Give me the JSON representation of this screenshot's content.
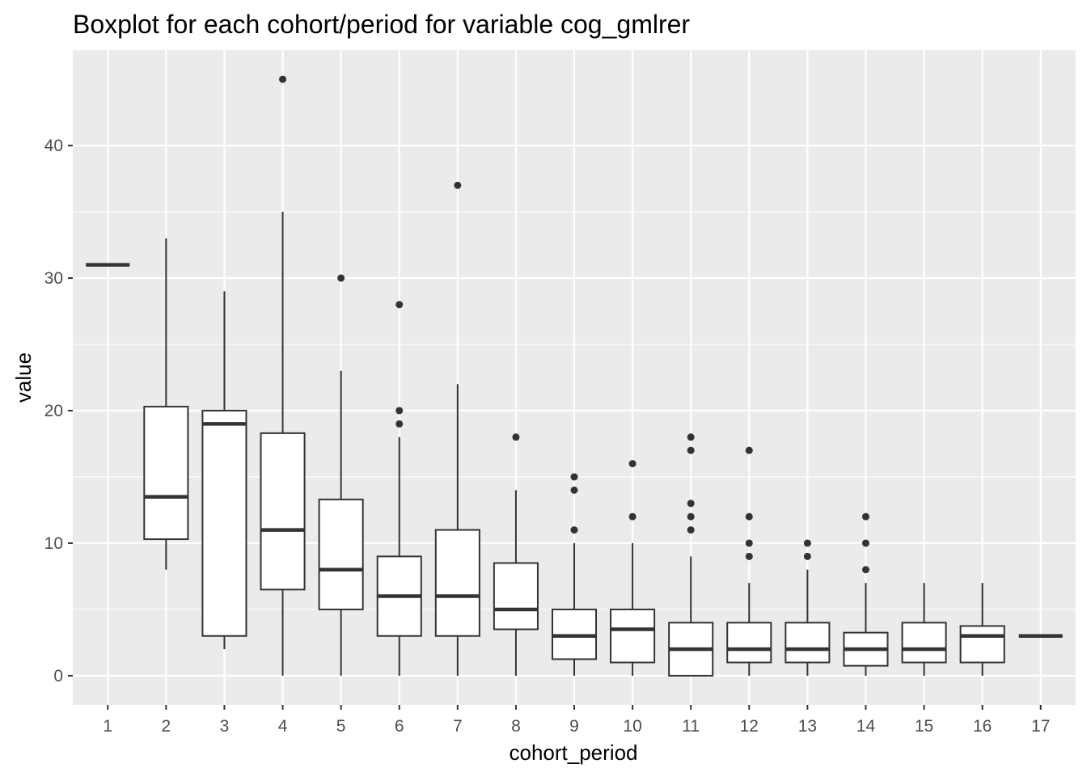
{
  "chart_data": {
    "type": "boxplot",
    "title": "Boxplot for each cohort/period for variable cog_gmlrer",
    "xlabel": "cohort_period",
    "ylabel": "value",
    "ylim": [
      -2.2,
      47.2
    ],
    "yticks": [
      0,
      10,
      20,
      30,
      40
    ],
    "grid": true,
    "categories": [
      "1",
      "2",
      "3",
      "4",
      "5",
      "6",
      "7",
      "8",
      "9",
      "10",
      "11",
      "12",
      "13",
      "14",
      "15",
      "16",
      "17"
    ],
    "boxes": [
      {
        "category": "1",
        "lower_whisker": 31,
        "q1": 31,
        "median": 31,
        "q3": 31,
        "upper_whisker": 31,
        "outliers": []
      },
      {
        "category": "2",
        "lower_whisker": 8,
        "q1": 10.3,
        "median": 13.5,
        "q3": 20.3,
        "upper_whisker": 33,
        "outliers": []
      },
      {
        "category": "3",
        "lower_whisker": 2,
        "q1": 3,
        "median": 19,
        "q3": 20,
        "upper_whisker": 29,
        "outliers": []
      },
      {
        "category": "4",
        "lower_whisker": 0,
        "q1": 6.5,
        "median": 11,
        "q3": 18.3,
        "upper_whisker": 35,
        "outliers": [
          45
        ]
      },
      {
        "category": "5",
        "lower_whisker": 0,
        "q1": 5,
        "median": 8,
        "q3": 13.3,
        "upper_whisker": 23,
        "outliers": [
          30
        ]
      },
      {
        "category": "6",
        "lower_whisker": 0,
        "q1": 3,
        "median": 6,
        "q3": 9,
        "upper_whisker": 18,
        "outliers": [
          19,
          20,
          28
        ]
      },
      {
        "category": "7",
        "lower_whisker": 0,
        "q1": 3,
        "median": 6,
        "q3": 11,
        "upper_whisker": 22,
        "outliers": [
          37
        ]
      },
      {
        "category": "8",
        "lower_whisker": 0,
        "q1": 3.5,
        "median": 5,
        "q3": 8.5,
        "upper_whisker": 14,
        "outliers": [
          18
        ]
      },
      {
        "category": "9",
        "lower_whisker": 0,
        "q1": 1.25,
        "median": 3,
        "q3": 5,
        "upper_whisker": 10,
        "outliers": [
          11,
          14,
          15
        ]
      },
      {
        "category": "10",
        "lower_whisker": 0,
        "q1": 1,
        "median": 3.5,
        "q3": 5,
        "upper_whisker": 10,
        "outliers": [
          12,
          16
        ]
      },
      {
        "category": "11",
        "lower_whisker": 0,
        "q1": 0,
        "median": 2,
        "q3": 4,
        "upper_whisker": 9,
        "outliers": [
          11,
          12,
          13,
          17,
          18
        ]
      },
      {
        "category": "12",
        "lower_whisker": 0,
        "q1": 1,
        "median": 2,
        "q3": 4,
        "upper_whisker": 7,
        "outliers": [
          9,
          10,
          12,
          17
        ]
      },
      {
        "category": "13",
        "lower_whisker": 0,
        "q1": 1,
        "median": 2,
        "q3": 4,
        "upper_whisker": 8,
        "outliers": [
          9,
          10
        ]
      },
      {
        "category": "14",
        "lower_whisker": 0,
        "q1": 0.75,
        "median": 2,
        "q3": 3.25,
        "upper_whisker": 7,
        "outliers": [
          8,
          10,
          12
        ]
      },
      {
        "category": "15",
        "lower_whisker": 0,
        "q1": 1,
        "median": 2,
        "q3": 4,
        "upper_whisker": 7,
        "outliers": []
      },
      {
        "category": "16",
        "lower_whisker": 0,
        "q1": 1,
        "median": 3,
        "q3": 3.75,
        "upper_whisker": 7,
        "outliers": []
      },
      {
        "category": "17",
        "lower_whisker": 3,
        "q1": 3,
        "median": 3,
        "q3": 3,
        "upper_whisker": 3,
        "outliers": []
      }
    ],
    "colors": {
      "panel": "#ebebeb",
      "grid_major": "#ffffff",
      "box_fill": "#ffffff",
      "box_line": "#333333",
      "outlier": "#333333",
      "tick_label": "#4d4d4d",
      "text": "#000000"
    }
  }
}
